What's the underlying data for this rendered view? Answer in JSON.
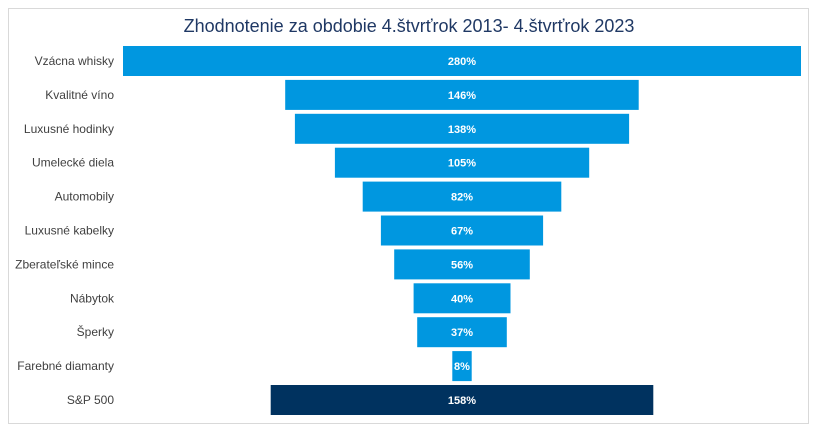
{
  "chart_data": {
    "type": "bar",
    "title": "Zhodnotenie za obdobie 4.štvrťrok 2013- 4.štvrťrok 2023",
    "categories": [
      "Vzácna whisky",
      "Kvalitné víno",
      "Luxusné hodinky",
      "Umelecké diela",
      "Automobily",
      "Luxusné kabelky",
      "Zberateľské mince",
      "Nábytok",
      "Šperky",
      "Farebné diamanty",
      "S&P 500"
    ],
    "values": [
      280,
      146,
      138,
      105,
      82,
      67,
      56,
      40,
      37,
      8,
      158
    ],
    "value_labels": [
      "280%",
      "146%",
      "138%",
      "105%",
      "82%",
      "67%",
      "56%",
      "40%",
      "37%",
      "8%",
      "158%"
    ],
    "orientation": "horizontal-centered",
    "colors": {
      "bar": "#0097e0",
      "highlight": "#00325f"
    },
    "highlight_index": 10,
    "grid": false,
    "legend": "none"
  }
}
